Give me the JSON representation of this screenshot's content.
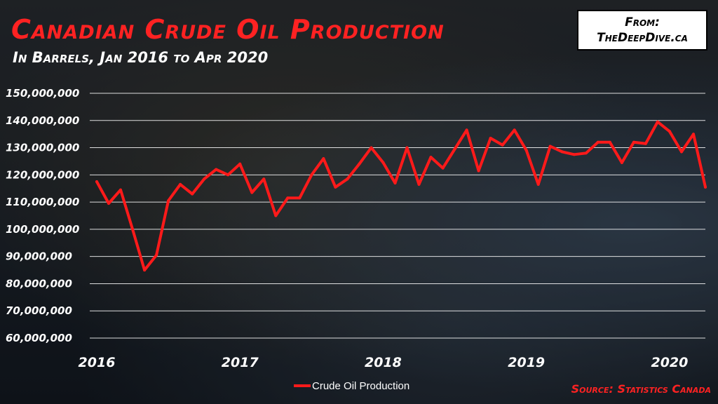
{
  "header": {
    "title": "Canadian Crude Oil Production",
    "subtitle": "In Barrels, Jan 2016 to Apr 2020"
  },
  "attribution": {
    "line1": "From:",
    "line2": "TheDeepDive.ca"
  },
  "source": "Source: Statistics Canada",
  "colors": {
    "series": "#ff1a1a",
    "gridline": "#ffffff",
    "title": "#ff2222"
  },
  "chart_data": {
    "type": "line",
    "title": "Canadian Crude Oil Production",
    "subtitle": "In Barrels, Jan 2016 to Apr 2020",
    "xlabel": "",
    "ylabel": "",
    "ylim": [
      60000000,
      150000000
    ],
    "y_ticks": [
      60000000,
      70000000,
      80000000,
      90000000,
      100000000,
      110000000,
      120000000,
      130000000,
      140000000,
      150000000
    ],
    "y_tick_labels": [
      "60,000,000",
      "70,000,000",
      "80,000,000",
      "90,000,000",
      "100,000,000",
      "110,000,000",
      "120,000,000",
      "130,000,000",
      "140,000,000",
      "150,000,000"
    ],
    "x_tick_labels": [
      {
        "label": "2016",
        "index": 0
      },
      {
        "label": "2017",
        "index": 12
      },
      {
        "label": "2018",
        "index": 24
      },
      {
        "label": "2019",
        "index": 36
      },
      {
        "label": "2020",
        "index": 48
      }
    ],
    "grid": "horizontal",
    "legend": "bottom-center",
    "x": [
      "2016-01",
      "2016-02",
      "2016-03",
      "2016-04",
      "2016-05",
      "2016-06",
      "2016-07",
      "2016-08",
      "2016-09",
      "2016-10",
      "2016-11",
      "2016-12",
      "2017-01",
      "2017-02",
      "2017-03",
      "2017-04",
      "2017-05",
      "2017-06",
      "2017-07",
      "2017-08",
      "2017-09",
      "2017-10",
      "2017-11",
      "2017-12",
      "2018-01",
      "2018-02",
      "2018-03",
      "2018-04",
      "2018-05",
      "2018-06",
      "2018-07",
      "2018-08",
      "2018-09",
      "2018-10",
      "2018-11",
      "2018-12",
      "2019-01",
      "2019-02",
      "2019-03",
      "2019-04",
      "2019-05",
      "2019-06",
      "2019-07",
      "2019-08",
      "2019-09",
      "2019-10",
      "2019-11",
      "2019-12",
      "2020-01",
      "2020-02",
      "2020-03",
      "2020-04"
    ],
    "series": [
      {
        "name": "Crude Oil Production",
        "values": [
          117500000,
          109500000,
          114500000,
          100000000,
          85000000,
          90500000,
          110500000,
          116500000,
          113000000,
          118500000,
          122000000,
          120000000,
          124000000,
          113500000,
          118500000,
          105000000,
          111500000,
          111500000,
          120000000,
          126000000,
          115500000,
          118500000,
          124000000,
          130000000,
          124500000,
          117000000,
          130000000,
          116500000,
          126500000,
          122500000,
          129500000,
          136500000,
          121500000,
          133500000,
          131000000,
          136500000,
          129000000,
          116500000,
          130500000,
          128500000,
          127500000,
          128000000,
          132000000,
          132000000,
          124500000,
          132000000,
          131500000,
          139500000,
          136000000,
          128500000,
          135000000,
          115500000
        ]
      }
    ]
  }
}
